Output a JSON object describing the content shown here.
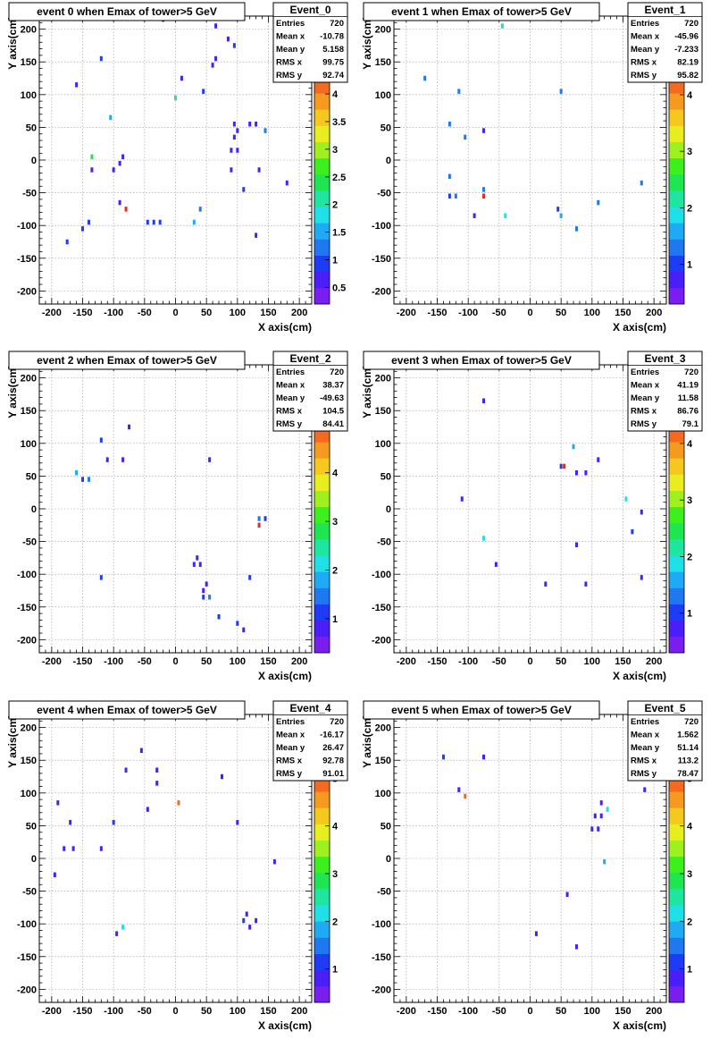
{
  "common": {
    "x_ticks": [
      -200,
      -150,
      -100,
      -50,
      0,
      50,
      100,
      150,
      200
    ],
    "y_ticks": [
      -200,
      -150,
      -100,
      -50,
      0,
      50,
      100,
      150,
      200
    ],
    "stats_labels": [
      "Entries",
      "Mean x",
      "Mean y",
      "RMS x",
      "RMS y"
    ],
    "xlabel": "X axis(cm)",
    "ylabel": "Y axis(cm)",
    "palette": [
      "#7a1ef0",
      "#4a1ef8",
      "#1e3cf5",
      "#1e78f0",
      "#1eaaf5",
      "#1ee0e6",
      "#1ee6a0",
      "#1ee650",
      "#3cf01e",
      "#9ef01e",
      "#e8ee1e",
      "#f5c81e",
      "#f59a1e",
      "#f56a1e",
      "#ee2a1e"
    ],
    "grid": true
  },
  "chart_data": [
    {
      "type": "heatmap",
      "title": "event 0 when Emax of tower>5 GeV",
      "stats": {
        "name": "Event_0",
        "values": [
          "720",
          "-10.78",
          "5.158",
          "99.75",
          "92.74"
        ]
      },
      "xlim": [
        -220,
        220
      ],
      "ylim": [
        -220,
        220
      ],
      "z_ticks": [
        0.5,
        1,
        1.5,
        2,
        2.5,
        3,
        3.5,
        4
      ],
      "zlim": [
        0.2,
        4.6
      ],
      "points": [
        [
          -175,
          -125,
          0.8
        ],
        [
          -150,
          -105,
          1.0
        ],
        [
          -140,
          -95,
          1.0
        ],
        [
          -135,
          5,
          2.4
        ],
        [
          -135,
          -15,
          0.6
        ],
        [
          -160,
          115,
          0.6
        ],
        [
          -120,
          155,
          0.8
        ],
        [
          -105,
          65,
          1.6
        ],
        [
          -100,
          -15,
          0.6
        ],
        [
          -90,
          -5,
          0.5
        ],
        [
          -85,
          5,
          0.6
        ],
        [
          -90,
          -65,
          0.6
        ],
        [
          -80,
          -75,
          4.5
        ],
        [
          -45,
          -95,
          0.8
        ],
        [
          -35,
          -95,
          0.9
        ],
        [
          -25,
          -95,
          0.8
        ],
        [
          -20,
          215,
          0.6
        ],
        [
          0,
          95,
          2.0
        ],
        [
          10,
          125,
          0.6
        ],
        [
          30,
          -95,
          1.6
        ],
        [
          40,
          -75,
          1.1
        ],
        [
          45,
          105,
          0.8
        ],
        [
          60,
          145,
          0.6
        ],
        [
          65,
          155,
          0.6
        ],
        [
          65,
          205,
          0.6
        ],
        [
          85,
          185,
          0.6
        ],
        [
          90,
          -15,
          0.6
        ],
        [
          90,
          15,
          0.6
        ],
        [
          95,
          55,
          0.6
        ],
        [
          95,
          35,
          0.6
        ],
        [
          95,
          175,
          0.9
        ],
        [
          100,
          45,
          0.6
        ],
        [
          100,
          15,
          0.6
        ],
        [
          110,
          -45,
          0.9
        ],
        [
          120,
          55,
          0.6
        ],
        [
          130,
          -115,
          0.6
        ],
        [
          130,
          55,
          0.6
        ],
        [
          135,
          -15,
          0.6
        ],
        [
          145,
          45,
          1.1
        ],
        [
          180,
          -35,
          0.6
        ]
      ]
    },
    {
      "type": "heatmap",
      "title": "event 1 when Emax of tower>5 GeV",
      "stats": {
        "name": "Event_1",
        "values": [
          "720",
          "-45.96",
          "-7.233",
          "82.19",
          "95.82"
        ]
      },
      "xlim": [
        -220,
        220
      ],
      "ylim": [
        -220,
        220
      ],
      "z_ticks": [
        1,
        2,
        3,
        4
      ],
      "zlim": [
        0.3,
        4.6
      ],
      "points": [
        [
          -170,
          125,
          1.2
        ],
        [
          -130,
          55,
          1.2
        ],
        [
          -130,
          -25,
          1.2
        ],
        [
          -130,
          -55,
          1.1
        ],
        [
          -120,
          -55,
          1.2
        ],
        [
          -115,
          105,
          1.2
        ],
        [
          -105,
          35,
          1.2
        ],
        [
          -90,
          -85,
          0.8
        ],
        [
          -75,
          -45,
          1.2
        ],
        [
          -75,
          -55,
          4.5
        ],
        [
          -75,
          45,
          0.8
        ],
        [
          -45,
          205,
          2.3
        ],
        [
          -40,
          -85,
          1.8
        ],
        [
          45,
          -75,
          0.9
        ],
        [
          50,
          -85,
          1.6
        ],
        [
          50,
          105,
          1.2
        ],
        [
          75,
          -105,
          1.2
        ],
        [
          110,
          -65,
          1.3
        ],
        [
          180,
          -35,
          1.2
        ]
      ]
    },
    {
      "type": "heatmap",
      "title": "event 2 when Emax of tower>5 GeV",
      "stats": {
        "name": "Event_2",
        "values": [
          "720",
          "38.37",
          "-49.63",
          "104.5",
          "84.41"
        ]
      },
      "xlim": [
        -220,
        220
      ],
      "ylim": [
        -220,
        220
      ],
      "z_ticks": [
        1,
        2,
        3,
        4,
        5
      ],
      "zlim": [
        0.3,
        5.3
      ],
      "points": [
        [
          -160,
          55,
          1.8
        ],
        [
          -150,
          45,
          1.2
        ],
        [
          -140,
          45,
          1.4
        ],
        [
          -120,
          105,
          1.2
        ],
        [
          -120,
          -105,
          1.2
        ],
        [
          -110,
          75,
          0.8
        ],
        [
          -85,
          75,
          0.8
        ],
        [
          -75,
          125,
          0.8
        ],
        [
          30,
          -85,
          0.8
        ],
        [
          35,
          -75,
          0.8
        ],
        [
          40,
          -85,
          0.8
        ],
        [
          45,
          -125,
          0.8
        ],
        [
          45,
          -135,
          1.2
        ],
        [
          50,
          -115,
          0.8
        ],
        [
          55,
          75,
          0.8
        ],
        [
          55,
          -135,
          1.3
        ],
        [
          70,
          -165,
          1.2
        ],
        [
          100,
          -175,
          1.2
        ],
        [
          110,
          -185,
          0.8
        ],
        [
          120,
          -105,
          1.2
        ],
        [
          135,
          -25,
          5.0
        ],
        [
          135,
          -15,
          1.4
        ],
        [
          145,
          -15,
          1.0
        ]
      ]
    },
    {
      "type": "heatmap",
      "title": "event 3 when Emax of tower>5 GeV",
      "stats": {
        "name": "Event_3",
        "values": [
          "720",
          "41.19",
          "11.58",
          "86.76",
          "79.1"
        ]
      },
      "xlim": [
        -220,
        220
      ],
      "ylim": [
        -220,
        220
      ],
      "z_ticks": [
        1,
        2,
        3,
        4
      ],
      "zlim": [
        0.3,
        4.6
      ],
      "points": [
        [
          -110,
          15,
          0.8
        ],
        [
          -75,
          165,
          0.8
        ],
        [
          -75,
          -45,
          1.8
        ],
        [
          -55,
          -85,
          0.8
        ],
        [
          25,
          -115,
          0.8
        ],
        [
          50,
          65,
          0.9
        ],
        [
          55,
          65,
          4.5
        ],
        [
          70,
          95,
          1.6
        ],
        [
          75,
          55,
          0.8
        ],
        [
          75,
          -55,
          0.8
        ],
        [
          90,
          -115,
          0.8
        ],
        [
          90,
          55,
          0.8
        ],
        [
          110,
          75,
          0.8
        ],
        [
          155,
          15,
          1.8
        ],
        [
          165,
          -35,
          1.0
        ],
        [
          180,
          -5,
          0.8
        ],
        [
          180,
          -105,
          0.8
        ]
      ]
    },
    {
      "type": "heatmap",
      "title": "event 4 when Emax of tower>5 GeV",
      "stats": {
        "name": "Event_4",
        "values": [
          "720",
          "-16.17",
          "26.47",
          "92.78",
          "91.01"
        ]
      },
      "xlim": [
        -220,
        220
      ],
      "ylim": [
        -220,
        220
      ],
      "z_ticks": [
        1,
        2,
        3,
        4,
        5
      ],
      "zlim": [
        0.3,
        5.4
      ],
      "points": [
        [
          -195,
          -25,
          0.8
        ],
        [
          -190,
          85,
          0.8
        ],
        [
          -180,
          15,
          0.8
        ],
        [
          -170,
          55,
          0.8
        ],
        [
          -165,
          15,
          0.8
        ],
        [
          -120,
          15,
          0.8
        ],
        [
          -100,
          55,
          1.2
        ],
        [
          -95,
          -115,
          0.8
        ],
        [
          -85,
          -105,
          2.3
        ],
        [
          -80,
          135,
          0.8
        ],
        [
          -55,
          165,
          0.8
        ],
        [
          -45,
          75,
          0.8
        ],
        [
          -30,
          115,
          0.8
        ],
        [
          -30,
          135,
          0.8
        ],
        [
          5,
          85,
          5.0
        ],
        [
          75,
          125,
          0.8
        ],
        [
          100,
          55,
          0.8
        ],
        [
          110,
          -95,
          1.2
        ],
        [
          115,
          -85,
          0.8
        ],
        [
          120,
          -105,
          0.8
        ],
        [
          130,
          -95,
          0.8
        ],
        [
          160,
          -5,
          0.8
        ]
      ]
    },
    {
      "type": "heatmap",
      "title": "event 5 when Emax of tower>5 GeV",
      "stats": {
        "name": "Event_5",
        "values": [
          "720",
          "1.562",
          "51.14",
          "113.2",
          "78.47"
        ]
      },
      "xlim": [
        -220,
        220
      ],
      "ylim": [
        -220,
        220
      ],
      "z_ticks": [
        1,
        2,
        3,
        4,
        5
      ],
      "zlim": [
        0.3,
        5.4
      ],
      "points": [
        [
          -140,
          155,
          1.2
        ],
        [
          -115,
          105,
          0.8
        ],
        [
          -105,
          95,
          5.0
        ],
        [
          -75,
          155,
          0.8
        ],
        [
          10,
          -115,
          0.8
        ],
        [
          60,
          -55,
          0.8
        ],
        [
          75,
          -135,
          0.8
        ],
        [
          100,
          45,
          0.8
        ],
        [
          105,
          65,
          0.8
        ],
        [
          110,
          45,
          0.8
        ],
        [
          115,
          65,
          0.8
        ],
        [
          115,
          85,
          0.8
        ],
        [
          120,
          -5,
          1.8
        ],
        [
          125,
          75,
          2.3
        ],
        [
          185,
          105,
          0.8
        ]
      ]
    }
  ]
}
